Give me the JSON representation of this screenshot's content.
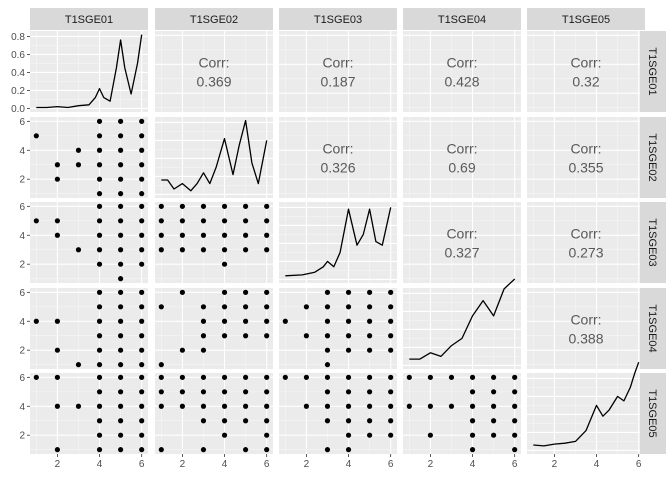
{
  "chart_data": {
    "type": "scatter-matrix",
    "variables": [
      "T1SGE01",
      "T1SGE02",
      "T1SGE03",
      "T1SGE04",
      "T1SGE05"
    ],
    "corr_label": "Corr:",
    "correlations": [
      {
        "row": 0,
        "col": 1,
        "value": "0.369"
      },
      {
        "row": 0,
        "col": 2,
        "value": "0.187"
      },
      {
        "row": 0,
        "col": 3,
        "value": "0.428"
      },
      {
        "row": 0,
        "col": 4,
        "value": "0.32"
      },
      {
        "row": 1,
        "col": 2,
        "value": "0.326"
      },
      {
        "row": 1,
        "col": 3,
        "value": "0.69"
      },
      {
        "row": 1,
        "col": 4,
        "value": "0.355"
      },
      {
        "row": 2,
        "col": 3,
        "value": "0.327"
      },
      {
        "row": 2,
        "col": 4,
        "value": "0.273"
      },
      {
        "row": 3,
        "col": 4,
        "value": "0.388"
      }
    ],
    "x_range": [
      0.7,
      6.3
    ],
    "y_range": [
      0.7,
      6.3
    ],
    "x_ticks": [
      2,
      4,
      6
    ],
    "y_ticks": [
      2,
      4,
      6
    ],
    "density_y_ticks": [
      0.0,
      0.2,
      0.4,
      0.6,
      0.8
    ],
    "density_y_tick_labels": [
      "0.0",
      "0.2",
      "0.4",
      "0.6",
      "0.8"
    ],
    "density_y_range": [
      -0.04,
      0.86
    ],
    "densities": [
      {
        "var": 0,
        "x": [
          1.0,
          1.5,
          2.0,
          2.5,
          3.0,
          3.5,
          3.8,
          4.0,
          4.2,
          4.5,
          4.8,
          5.0,
          5.2,
          5.5,
          5.8,
          6.0
        ],
        "y": [
          0.01,
          0.01,
          0.02,
          0.01,
          0.03,
          0.04,
          0.12,
          0.22,
          0.12,
          0.08,
          0.45,
          0.76,
          0.45,
          0.16,
          0.5,
          0.82
        ]
      },
      {
        "var": 1,
        "x": [
          1.0,
          1.3,
          1.6,
          2.0,
          2.4,
          2.7,
          3.0,
          3.3,
          3.6,
          4.0,
          4.4,
          4.7,
          5.0,
          5.3,
          5.6,
          6.0
        ],
        "y": [
          0.16,
          0.16,
          0.06,
          0.12,
          0.04,
          0.12,
          0.24,
          0.12,
          0.3,
          0.62,
          0.22,
          0.55,
          0.82,
          0.35,
          0.12,
          0.6
        ]
      },
      {
        "var": 2,
        "x": [
          1.0,
          1.8,
          2.4,
          2.8,
          3.0,
          3.3,
          3.6,
          4.0,
          4.4,
          4.7,
          5.0,
          5.3,
          5.6,
          6.0
        ],
        "y": [
          0.04,
          0.05,
          0.08,
          0.14,
          0.2,
          0.14,
          0.3,
          0.78,
          0.38,
          0.5,
          0.78,
          0.42,
          0.38,
          0.8
        ]
      },
      {
        "var": 3,
        "x": [
          1.0,
          1.5,
          2.0,
          2.5,
          3.0,
          3.5,
          4.0,
          4.5,
          5.0,
          5.5,
          6.0
        ],
        "y": [
          0.07,
          0.07,
          0.14,
          0.1,
          0.22,
          0.3,
          0.55,
          0.72,
          0.55,
          0.85,
          0.96
        ]
      },
      {
        "var": 4,
        "x": [
          1.0,
          1.5,
          2.0,
          2.5,
          3.0,
          3.5,
          4.0,
          4.3,
          4.6,
          5.0,
          5.3,
          5.6,
          5.8,
          6.0
        ],
        "y": [
          0.06,
          0.05,
          0.07,
          0.08,
          0.1,
          0.22,
          0.5,
          0.38,
          0.45,
          0.6,
          0.55,
          0.7,
          0.85,
          0.98
        ]
      }
    ],
    "scatter": [
      {
        "row": 1,
        "col": 0,
        "points": [
          [
            1,
            5
          ],
          [
            2,
            2
          ],
          [
            2,
            3
          ],
          [
            3,
            3
          ],
          [
            3,
            4
          ],
          [
            4,
            1
          ],
          [
            4,
            2
          ],
          [
            4,
            3
          ],
          [
            4,
            4
          ],
          [
            4,
            5
          ],
          [
            4,
            6
          ],
          [
            5,
            1
          ],
          [
            5,
            2
          ],
          [
            5,
            3
          ],
          [
            5,
            4
          ],
          [
            5,
            5
          ],
          [
            5,
            6
          ],
          [
            6,
            1
          ],
          [
            6,
            2
          ],
          [
            6,
            3
          ],
          [
            6,
            4
          ],
          [
            6,
            5
          ],
          [
            6,
            6
          ]
        ]
      },
      {
        "row": 2,
        "col": 0,
        "points": [
          [
            1,
            5
          ],
          [
            2,
            4
          ],
          [
            2,
            5
          ],
          [
            3,
            3
          ],
          [
            4,
            2
          ],
          [
            4,
            3
          ],
          [
            4,
            4
          ],
          [
            4,
            5
          ],
          [
            4,
            6
          ],
          [
            5,
            1
          ],
          [
            5,
            2
          ],
          [
            5,
            3
          ],
          [
            5,
            4
          ],
          [
            5,
            5
          ],
          [
            5,
            6
          ],
          [
            6,
            2
          ],
          [
            6,
            3
          ],
          [
            6,
            4
          ],
          [
            6,
            5
          ],
          [
            6,
            6
          ]
        ]
      },
      {
        "row": 2,
        "col": 1,
        "points": [
          [
            1,
            3
          ],
          [
            1,
            4
          ],
          [
            1,
            5
          ],
          [
            1,
            6
          ],
          [
            2,
            3
          ],
          [
            2,
            4
          ],
          [
            2,
            5
          ],
          [
            2,
            6
          ],
          [
            3,
            3
          ],
          [
            3,
            4
          ],
          [
            3,
            5
          ],
          [
            3,
            6
          ],
          [
            4,
            2
          ],
          [
            4,
            3
          ],
          [
            4,
            4
          ],
          [
            4,
            5
          ],
          [
            4,
            6
          ],
          [
            5,
            3
          ],
          [
            5,
            4
          ],
          [
            5,
            5
          ],
          [
            5,
            6
          ],
          [
            6,
            3
          ],
          [
            6,
            4
          ],
          [
            6,
            5
          ],
          [
            6,
            6
          ]
        ]
      },
      {
        "row": 3,
        "col": 0,
        "points": [
          [
            1,
            4
          ],
          [
            2,
            2
          ],
          [
            2,
            4
          ],
          [
            3,
            1
          ],
          [
            4,
            1
          ],
          [
            4,
            2
          ],
          [
            4,
            3
          ],
          [
            4,
            4
          ],
          [
            4,
            5
          ],
          [
            4,
            6
          ],
          [
            5,
            1
          ],
          [
            5,
            2
          ],
          [
            5,
            3
          ],
          [
            5,
            4
          ],
          [
            5,
            5
          ],
          [
            5,
            6
          ],
          [
            6,
            1
          ],
          [
            6,
            2
          ],
          [
            6,
            3
          ],
          [
            6,
            4
          ],
          [
            6,
            5
          ],
          [
            6,
            6
          ]
        ]
      },
      {
        "row": 3,
        "col": 1,
        "points": [
          [
            1,
            1
          ],
          [
            1,
            5
          ],
          [
            2,
            2
          ],
          [
            2,
            6
          ],
          [
            3,
            2
          ],
          [
            3,
            3
          ],
          [
            3,
            4
          ],
          [
            3,
            5
          ],
          [
            4,
            3
          ],
          [
            4,
            4
          ],
          [
            4,
            5
          ],
          [
            4,
            6
          ],
          [
            5,
            3
          ],
          [
            5,
            4
          ],
          [
            5,
            5
          ],
          [
            5,
            6
          ],
          [
            6,
            3
          ],
          [
            6,
            4
          ],
          [
            6,
            5
          ],
          [
            6,
            6
          ]
        ]
      },
      {
        "row": 3,
        "col": 2,
        "points": [
          [
            1,
            4
          ],
          [
            2,
            3
          ],
          [
            2,
            5
          ],
          [
            3,
            1
          ],
          [
            3,
            2
          ],
          [
            3,
            3
          ],
          [
            3,
            4
          ],
          [
            3,
            5
          ],
          [
            3,
            6
          ],
          [
            4,
            2
          ],
          [
            4,
            3
          ],
          [
            4,
            4
          ],
          [
            4,
            5
          ],
          [
            4,
            6
          ],
          [
            5,
            2
          ],
          [
            5,
            3
          ],
          [
            5,
            4
          ],
          [
            5,
            5
          ],
          [
            5,
            6
          ],
          [
            6,
            2
          ],
          [
            6,
            3
          ],
          [
            6,
            4
          ],
          [
            6,
            5
          ],
          [
            6,
            6
          ]
        ]
      },
      {
        "row": 4,
        "col": 0,
        "points": [
          [
            1,
            6
          ],
          [
            2,
            1
          ],
          [
            2,
            4
          ],
          [
            2,
            6
          ],
          [
            3,
            4
          ],
          [
            4,
            1
          ],
          [
            4,
            2
          ],
          [
            4,
            3
          ],
          [
            4,
            4
          ],
          [
            4,
            5
          ],
          [
            4,
            6
          ],
          [
            5,
            1
          ],
          [
            5,
            2
          ],
          [
            5,
            3
          ],
          [
            5,
            4
          ],
          [
            5,
            5
          ],
          [
            5,
            6
          ],
          [
            6,
            1
          ],
          [
            6,
            2
          ],
          [
            6,
            3
          ],
          [
            6,
            4
          ],
          [
            6,
            5
          ],
          [
            6,
            6
          ]
        ]
      },
      {
        "row": 4,
        "col": 1,
        "points": [
          [
            1,
            1
          ],
          [
            1,
            4
          ],
          [
            1,
            5
          ],
          [
            1,
            6
          ],
          [
            2,
            4
          ],
          [
            2,
            5
          ],
          [
            2,
            6
          ],
          [
            3,
            1
          ],
          [
            3,
            3
          ],
          [
            3,
            4
          ],
          [
            3,
            5
          ],
          [
            3,
            6
          ],
          [
            4,
            2
          ],
          [
            4,
            3
          ],
          [
            4,
            4
          ],
          [
            4,
            5
          ],
          [
            4,
            6
          ],
          [
            5,
            1
          ],
          [
            5,
            3
          ],
          [
            5,
            4
          ],
          [
            5,
            5
          ],
          [
            5,
            6
          ],
          [
            6,
            1
          ],
          [
            6,
            2
          ],
          [
            6,
            3
          ],
          [
            6,
            4
          ],
          [
            6,
            5
          ],
          [
            6,
            6
          ]
        ]
      },
      {
        "row": 4,
        "col": 2,
        "points": [
          [
            1,
            6
          ],
          [
            2,
            4
          ],
          [
            2,
            6
          ],
          [
            3,
            1
          ],
          [
            3,
            3
          ],
          [
            3,
            4
          ],
          [
            3,
            5
          ],
          [
            3,
            6
          ],
          [
            4,
            1
          ],
          [
            4,
            2
          ],
          [
            4,
            3
          ],
          [
            4,
            4
          ],
          [
            4,
            5
          ],
          [
            4,
            6
          ],
          [
            5,
            2
          ],
          [
            5,
            3
          ],
          [
            5,
            4
          ],
          [
            5,
            5
          ],
          [
            5,
            6
          ],
          [
            6,
            2
          ],
          [
            6,
            3
          ],
          [
            6,
            4
          ],
          [
            6,
            5
          ],
          [
            6,
            6
          ]
        ]
      },
      {
        "row": 4,
        "col": 3,
        "points": [
          [
            1,
            6
          ],
          [
            1,
            4
          ],
          [
            2,
            2
          ],
          [
            2,
            4
          ],
          [
            2,
            6
          ],
          [
            3,
            4
          ],
          [
            3,
            6
          ],
          [
            4,
            1
          ],
          [
            4,
            2
          ],
          [
            4,
            3
          ],
          [
            4,
            4
          ],
          [
            4,
            5
          ],
          [
            4,
            6
          ],
          [
            5,
            2
          ],
          [
            5,
            3
          ],
          [
            5,
            4
          ],
          [
            5,
            5
          ],
          [
            5,
            6
          ],
          [
            6,
            1
          ],
          [
            6,
            2
          ],
          [
            6,
            3
          ],
          [
            6,
            4
          ],
          [
            6,
            5
          ],
          [
            6,
            6
          ]
        ]
      }
    ],
    "colors": {
      "panel_bg": "#ebebeb",
      "grid_major": "#ffffff",
      "grid_minor": "#f5f5f5",
      "strip_bg": "#d9d9d9",
      "point": "#000000",
      "line": "#000000",
      "corr_text": "#595959",
      "tick_text": "#4d4d4d",
      "strip_text": "#1a1a1a"
    }
  }
}
